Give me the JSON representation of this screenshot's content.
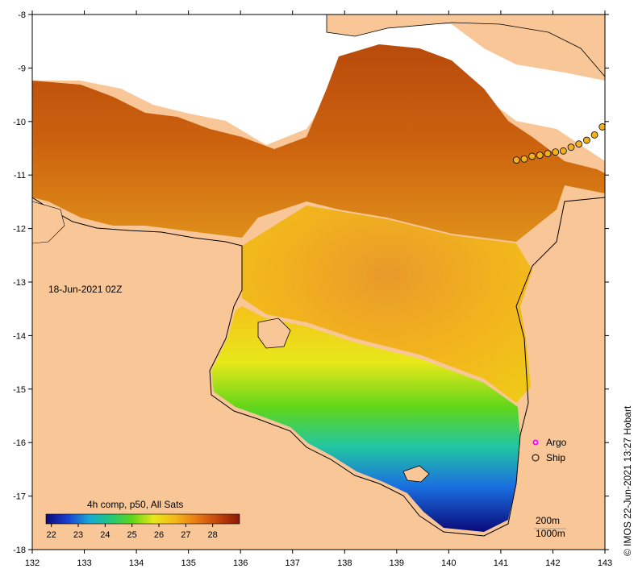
{
  "map": {
    "timestamp_label": "18-Jun-2021 02Z",
    "lon_ticks": [
      "132",
      "133",
      "134",
      "135",
      "136",
      "137",
      "138",
      "139",
      "140",
      "141",
      "142",
      "143"
    ],
    "lat_ticks": [
      "-8",
      "-9",
      "-10",
      "-11",
      "-12",
      "-13",
      "-14",
      "-15",
      "-16",
      "-17",
      "-18"
    ],
    "lon_range": [
      132,
      143
    ],
    "lat_range": [
      -18,
      -8
    ]
  },
  "colorbar": {
    "title": "4h comp, p50, All Sats",
    "tick_labels": [
      "22",
      "23",
      "24",
      "25",
      "26",
      "27",
      "28"
    ],
    "range": [
      21.8,
      29.0
    ],
    "colors": [
      "#0a0a7a",
      "#1a3fd0",
      "#17a8d6",
      "#22c77a",
      "#5fd61a",
      "#e8e81a",
      "#f5b81a",
      "#e87a14",
      "#c2440c",
      "#8a1a06"
    ]
  },
  "legend": {
    "items": [
      {
        "label": "Argo",
        "marker": "magenta-star"
      },
      {
        "label": "Ship",
        "marker": "circle"
      }
    ]
  },
  "contours": {
    "label_200": "200m",
    "label_1000": "1000m"
  },
  "credit": "© IMOS 22-Jun-2021 13:27 Hobart",
  "ship_track": [
    [
      141.3,
      -10.72
    ],
    [
      141.45,
      -10.7
    ],
    [
      141.6,
      -10.65
    ],
    [
      141.75,
      -10.63
    ],
    [
      141.9,
      -10.6
    ],
    [
      142.05,
      -10.57
    ],
    [
      142.2,
      -10.55
    ],
    [
      142.35,
      -10.48
    ],
    [
      142.5,
      -10.42
    ],
    [
      142.65,
      -10.35
    ],
    [
      142.8,
      -10.25
    ],
    [
      142.95,
      -10.1
    ]
  ],
  "colors": {
    "land": "#f9c797",
    "no_data": "#ffffff"
  }
}
